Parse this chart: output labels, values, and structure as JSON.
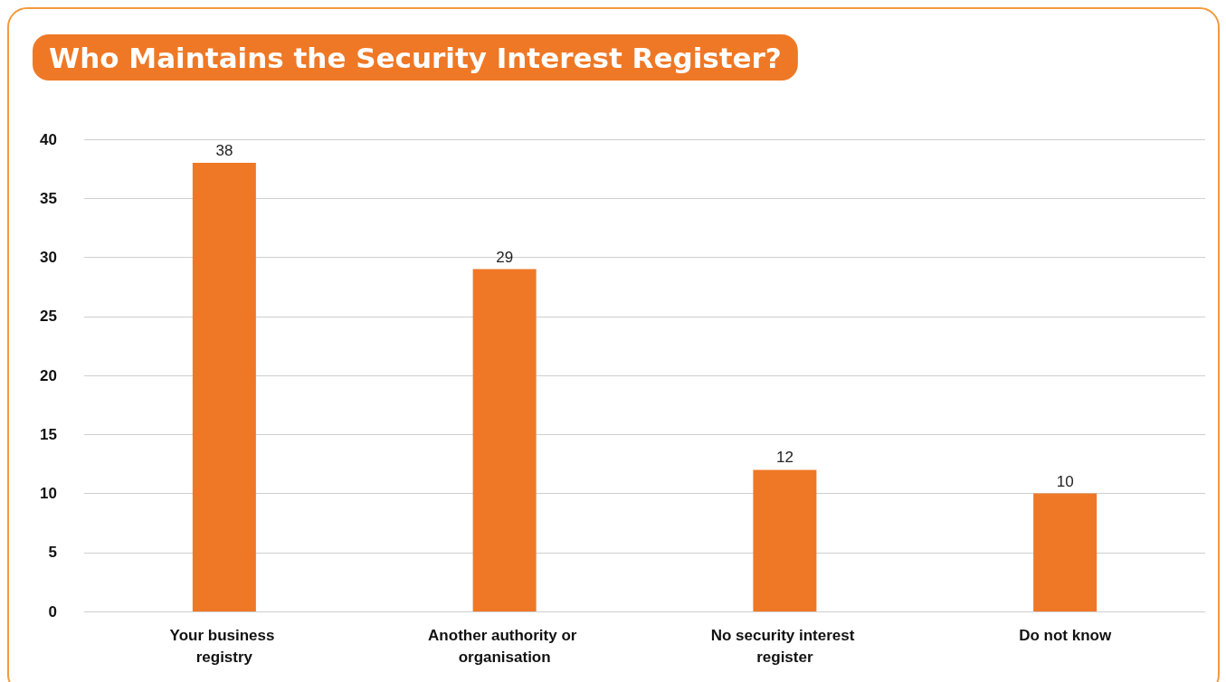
{
  "chart_data": {
    "type": "bar",
    "title": "Who Maintains the Security Interest Register?",
    "categories": [
      "Your business registry",
      "Another authority or organisation",
      "No security interest register",
      "Do not know"
    ],
    "values": [
      38,
      29,
      12,
      10
    ],
    "color": "#ef7826",
    "ylim": [
      0,
      40
    ],
    "yticks": [
      0,
      5,
      10,
      15,
      20,
      25,
      30,
      35,
      40
    ],
    "grid": "y",
    "data_labels": true
  }
}
